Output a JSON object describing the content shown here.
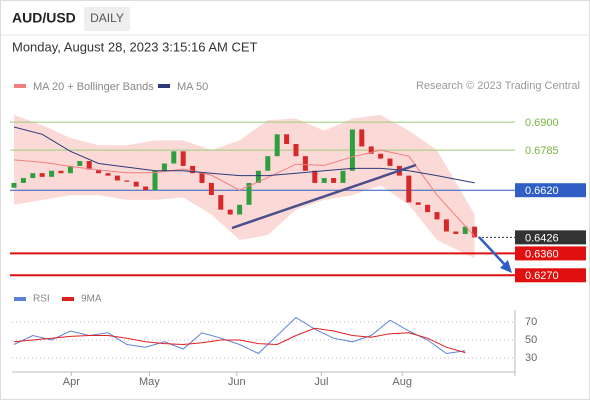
{
  "header": {
    "symbol": "AUD/USD",
    "timeframe": "DAILY",
    "date": "Monday, August 28, 2023 3:15:16 AM CET",
    "credit": "Research © 2023 Trading Central"
  },
  "chart_data": [
    {
      "type": "candlestick",
      "open": [
        0.663,
        0.665,
        0.667,
        0.669,
        0.6675,
        0.67,
        0.669,
        0.672,
        0.674,
        0.6705,
        0.669,
        0.668,
        0.666,
        0.6655,
        0.6635,
        0.662,
        0.67,
        0.673,
        0.678,
        0.672,
        0.669,
        0.665,
        0.66,
        0.654,
        0.652,
        0.656,
        0.665,
        0.67,
        0.676,
        0.685,
        0.681,
        0.676,
        0.67,
        0.665,
        0.667,
        0.665,
        0.67,
        0.687,
        0.68,
        0.677,
        0.675,
        0.672,
        0.668,
        0.657,
        0.656,
        0.653,
        0.65,
        0.645,
        0.644,
        0.647
      ],
      "close": [
        0.665,
        0.667,
        0.669,
        0.6675,
        0.67,
        0.669,
        0.672,
        0.674,
        0.6705,
        0.669,
        0.668,
        0.666,
        0.6655,
        0.6635,
        0.662,
        0.67,
        0.673,
        0.678,
        0.672,
        0.669,
        0.665,
        0.66,
        0.654,
        0.652,
        0.656,
        0.665,
        0.67,
        0.676,
        0.685,
        0.681,
        0.676,
        0.67,
        0.665,
        0.667,
        0.665,
        0.67,
        0.687,
        0.68,
        0.677,
        0.675,
        0.672,
        0.668,
        0.657,
        0.656,
        0.653,
        0.65,
        0.645,
        0.644,
        0.647,
        0.6426
      ],
      "up_color": "#2e9e3e",
      "down_color": "#d62828",
      "xticks": [
        {
          "value": 6.1,
          "label": "Apr"
        },
        {
          "value": 14.4,
          "label": "May"
        },
        {
          "value": 23.7,
          "label": "Jun"
        },
        {
          "value": 32.7,
          "label": "Jul"
        },
        {
          "value": 41.3,
          "label": "Aug"
        }
      ],
      "ylim": [
        0.623,
        0.695
      ],
      "bands": {
        "x": [
          0,
          3,
          6,
          9,
          12,
          15,
          18,
          21,
          24,
          27,
          30,
          33,
          36,
          39,
          42,
          45,
          49
        ],
        "upper": [
          0.693,
          0.6888,
          0.6835,
          0.6805,
          0.6805,
          0.6825,
          0.6825,
          0.6785,
          0.6825,
          0.6908,
          0.6915,
          0.6865,
          0.6915,
          0.693,
          0.6865,
          0.6785,
          0.652
        ],
        "lower": [
          0.656,
          0.658,
          0.66,
          0.66,
          0.658,
          0.658,
          0.659,
          0.652,
          0.6415,
          0.6435,
          0.654,
          0.658,
          0.66,
          0.664,
          0.656,
          0.6415,
          0.634
        ],
        "color": "#fbd9d6"
      },
      "series": [
        {
          "name": "MA 20 + Bollinger Bands",
          "color": "#f08080",
          "x": [
            0,
            3,
            6,
            9,
            12,
            15,
            18,
            21,
            24,
            27,
            30,
            33,
            36,
            39,
            42,
            45,
            49
          ],
          "values": [
            0.6745,
            0.6735,
            0.6718,
            0.6703,
            0.6692,
            0.6692,
            0.6707,
            0.6682,
            0.662,
            0.6672,
            0.6727,
            0.6722,
            0.6757,
            0.6785,
            0.676,
            0.66,
            0.643
          ]
        },
        {
          "name": "MA 50",
          "color": "#2b3a7a",
          "x": [
            0,
            3,
            6,
            9,
            12,
            15,
            18,
            21,
            24,
            27,
            30,
            33,
            36,
            39,
            42,
            45,
            49
          ],
          "values": [
            0.688,
            0.685,
            0.678,
            0.673,
            0.6715,
            0.67,
            0.67,
            0.669,
            0.668,
            0.668,
            0.669,
            0.67,
            0.671,
            0.671,
            0.67,
            0.668,
            0.665
          ]
        }
      ],
      "levels": [
        {
          "value": 0.69,
          "label": "0.6900",
          "color": "#9ccc7a",
          "box": false
        },
        {
          "value": 0.6785,
          "label": "0.6785",
          "color": "#9ccc7a",
          "box": false
        },
        {
          "value": 0.662,
          "label": "0.6620",
          "color": "#2f5fc4",
          "box": true
        },
        {
          "value": 0.6426,
          "label": "0.6426",
          "color": "#333333",
          "box": true
        },
        {
          "value": 0.636,
          "label": "0.6360",
          "color": "#e01010",
          "box": true
        },
        {
          "value": 0.627,
          "label": "0.6270",
          "color": "#e01010",
          "box": true
        }
      ]
    },
    {
      "type": "line",
      "x": [
        0,
        2,
        4,
        6,
        8,
        10,
        12,
        14,
        16,
        18,
        20,
        22,
        24,
        26,
        28,
        30,
        32,
        34,
        36,
        38,
        40,
        42,
        44,
        46,
        48
      ],
      "series": [
        {
          "name": "RSI",
          "color": "#5b84d6",
          "values": [
            45,
            55,
            50,
            60,
            55,
            58,
            45,
            42,
            48,
            40,
            58,
            52,
            45,
            35,
            55,
            75,
            62,
            52,
            48,
            55,
            72,
            60,
            50,
            35,
            38
          ]
        },
        {
          "name": "9MA",
          "color": "#e02020",
          "values": [
            48,
            50,
            52,
            54,
            55,
            55,
            52,
            48,
            46,
            45,
            47,
            50,
            50,
            46,
            45,
            55,
            63,
            60,
            55,
            53,
            57,
            58,
            52,
            42,
            36
          ]
        }
      ],
      "ylim": [
        15,
        83
      ],
      "yticks": [
        30,
        50,
        70
      ]
    }
  ]
}
